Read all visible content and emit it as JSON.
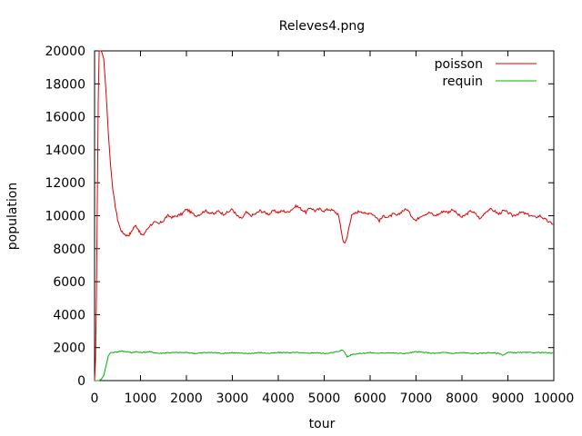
{
  "chart_data": {
    "type": "line",
    "title": "Releves4.png",
    "xlabel": "tour",
    "ylabel": "population",
    "xlim": [
      0,
      10000
    ],
    "ylim": [
      0,
      20000
    ],
    "xticks": [
      0,
      1000,
      2000,
      3000,
      4000,
      5000,
      6000,
      7000,
      8000,
      9000,
      10000
    ],
    "yticks": [
      0,
      2000,
      4000,
      6000,
      8000,
      10000,
      12000,
      14000,
      16000,
      18000,
      20000
    ],
    "grid": false,
    "legend_position": "top-right",
    "series": [
      {
        "name": "poisson",
        "color": "#e00000",
        "x": [
          0,
          20,
          40,
          60,
          80,
          100,
          120,
          140,
          160,
          200,
          250,
          300,
          350,
          400,
          450,
          500,
          550,
          600,
          650,
          700,
          750,
          800,
          850,
          900,
          950,
          1000,
          1050,
          1100,
          1150,
          1200,
          1300,
          1400,
          1500,
          1550,
          1600,
          1700,
          1800,
          1900,
          2000,
          2100,
          2200,
          2300,
          2400,
          2500,
          2600,
          2700,
          2800,
          2900,
          3000,
          3100,
          3200,
          3300,
          3400,
          3500,
          3600,
          3700,
          3800,
          3900,
          4000,
          4100,
          4200,
          4300,
          4400,
          4500,
          4600,
          4700,
          4800,
          4900,
          5000,
          5100,
          5200,
          5300,
          5350,
          5400,
          5450,
          5500,
          5550,
          5600,
          5700,
          5800,
          5900,
          6000,
          6100,
          6200,
          6300,
          6400,
          6500,
          6600,
          6700,
          6800,
          6900,
          7000,
          7100,
          7200,
          7300,
          7400,
          7500,
          7600,
          7700,
          7800,
          7900,
          8000,
          8100,
          8200,
          8300,
          8400,
          8500,
          8600,
          8700,
          8800,
          8900,
          9000,
          9100,
          9200,
          9300,
          9400,
          9500,
          9600,
          9700,
          9800,
          9900,
          10000
        ],
        "y": [
          0,
          1200,
          5000,
          11000,
          17000,
          20000,
          20000,
          20000,
          19900,
          19500,
          17500,
          15000,
          13000,
          11500,
          10600,
          9800,
          9300,
          9000,
          8900,
          8800,
          8850,
          9000,
          9300,
          9400,
          9200,
          8900,
          8800,
          9000,
          9200,
          9400,
          9600,
          9500,
          9700,
          9900,
          10000,
          9900,
          10000,
          10100,
          10400,
          10200,
          10000,
          10100,
          10300,
          10200,
          10100,
          10300,
          10100,
          10200,
          10400,
          10000,
          9800,
          10200,
          10000,
          10100,
          10300,
          10200,
          10100,
          10300,
          10200,
          10300,
          10200,
          10400,
          10600,
          10400,
          10200,
          10500,
          10300,
          10400,
          10300,
          10400,
          10300,
          10100,
          9500,
          8600,
          8300,
          8700,
          9500,
          10000,
          10200,
          10300,
          10100,
          10200,
          10000,
          9700,
          10000,
          9900,
          10100,
          10000,
          10300,
          10400,
          10000,
          9700,
          10000,
          10100,
          10200,
          10000,
          10100,
          10300,
          10200,
          10400,
          10100,
          9900,
          10100,
          10300,
          10100,
          9800,
          10200,
          10400,
          10300,
          10100,
          10300,
          10200,
          10000,
          10100,
          10200,
          10100,
          10000,
          9900,
          10000,
          9800,
          9600,
          9500
        ]
      },
      {
        "name": "requin",
        "color": "#00b000",
        "x": [
          0,
          100,
          150,
          200,
          250,
          300,
          350,
          400,
          500,
          600,
          700,
          800,
          900,
          1000,
          1200,
          1400,
          1600,
          1800,
          2000,
          2200,
          2400,
          2600,
          2800,
          3000,
          3200,
          3400,
          3600,
          3800,
          4000,
          4200,
          4400,
          4600,
          4800,
          5000,
          5200,
          5400,
          5450,
          5500,
          5550,
          5600,
          5800,
          6000,
          6200,
          6400,
          6600,
          6800,
          7000,
          7200,
          7400,
          7600,
          7800,
          8000,
          8200,
          8400,
          8600,
          8800,
          8900,
          9000,
          9200,
          9400,
          9600,
          9800,
          10000
        ],
        "y": [
          0,
          0,
          100,
          300,
          900,
          1500,
          1700,
          1700,
          1750,
          1800,
          1750,
          1700,
          1750,
          1700,
          1750,
          1650,
          1700,
          1700,
          1700,
          1650,
          1700,
          1700,
          1650,
          1700,
          1650,
          1650,
          1700,
          1650,
          1700,
          1700,
          1700,
          1650,
          1700,
          1650,
          1700,
          1850,
          1700,
          1450,
          1500,
          1600,
          1650,
          1700,
          1650,
          1700,
          1650,
          1650,
          1750,
          1700,
          1650,
          1700,
          1650,
          1700,
          1650,
          1650,
          1700,
          1650,
          1550,
          1700,
          1700,
          1700,
          1700,
          1700,
          1650
        ]
      }
    ]
  }
}
